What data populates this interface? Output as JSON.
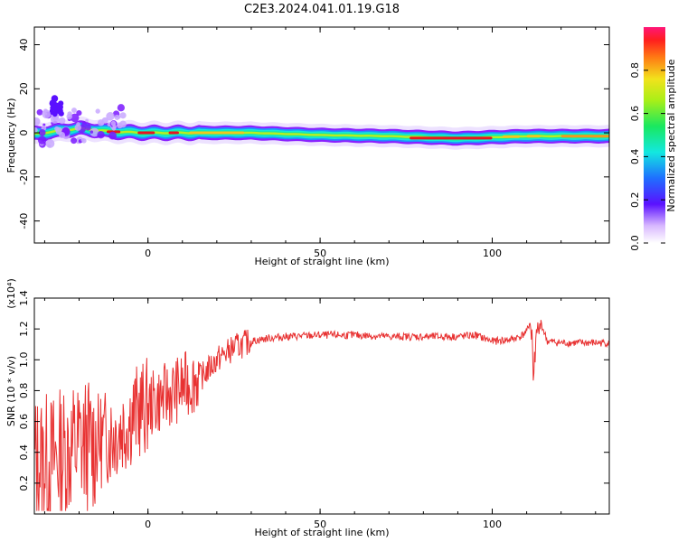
{
  "title": "C2E3.2024.041.01.19.G18",
  "colors": {
    "snr_line": "#e83232",
    "band_outer": "#8a20ff",
    "band_mid": "#1f8fff",
    "band_inner": "#19e8a0",
    "band_core": "#f2e21c",
    "band_peak": "#e8141e"
  },
  "chart_data": [
    {
      "type": "heatmap",
      "xlabel": "Height of straight line (km)",
      "ylabel": "Frequency (Hz)",
      "xlim": [
        -33,
        134
      ],
      "ylim": [
        -50,
        48
      ],
      "xticks": [
        0,
        50,
        100
      ],
      "xtick_labels": [
        "0",
        "50",
        "100"
      ],
      "yticks": [
        40,
        20,
        0,
        -20,
        -40
      ],
      "ytick_labels": [
        "40",
        "20",
        "0",
        "-20",
        "-40"
      ],
      "ridge": {
        "height_km": [
          -33,
          -25,
          -20,
          -10,
          0,
          10,
          30,
          50,
          70,
          80,
          90,
          100,
          110,
          120,
          134
        ],
        "frequency_hz": [
          -0.5,
          1,
          2,
          0.5,
          0,
          0,
          0,
          -1,
          -1.5,
          -2,
          -2.5,
          -2,
          -1.5,
          -1.5,
          -1.5
        ]
      },
      "colorbar": {
        "label": "Normalized spectral amplitude",
        "range": [
          0,
          1
        ],
        "ticks": [
          0.0,
          0.2,
          0.4,
          0.6,
          0.8
        ],
        "tick_labels": [
          "0.0",
          "0.2",
          "0.4",
          "0.6",
          "0.8"
        ]
      }
    },
    {
      "type": "line",
      "xlabel": "Height of straight line (km)",
      "ylabel": "SNR (10 * v/v)",
      "scale_label": "(x10⁴)",
      "xlim": [
        -33,
        134
      ],
      "ylim": [
        0.0,
        1.4
      ],
      "xticks": [
        0,
        50,
        100
      ],
      "xtick_labels": [
        "0",
        "50",
        "100"
      ],
      "yticks": [
        0.2,
        0.4,
        0.6,
        0.8,
        1.0,
        1.2,
        1.4
      ],
      "ytick_labels": [
        "0.2",
        "0.4",
        "0.6",
        "0.8",
        "1.0",
        "1.2",
        "1.4"
      ],
      "series": [
        {
          "x": [
            -33,
            -28,
            -24,
            -20,
            -16,
            -12,
            -8,
            -4,
            0,
            4,
            8,
            12,
            16,
            20,
            25,
            30,
            35,
            40,
            50,
            60,
            70,
            80,
            90,
            95,
            100,
            105,
            108,
            110,
            111,
            112,
            113,
            114,
            116,
            120,
            125,
            134
          ],
          "y": [
            0.35,
            0.35,
            0.4,
            0.45,
            0.45,
            0.5,
            0.55,
            0.65,
            0.7,
            0.75,
            0.8,
            0.85,
            0.9,
            1.0,
            1.08,
            1.12,
            1.14,
            1.15,
            1.16,
            1.16,
            1.15,
            1.15,
            1.15,
            1.16,
            1.12,
            1.13,
            1.15,
            1.18,
            1.25,
            0.95,
            1.1,
            1.25,
            1.12,
            1.11,
            1.11,
            1.11
          ]
        }
      ]
    }
  ]
}
